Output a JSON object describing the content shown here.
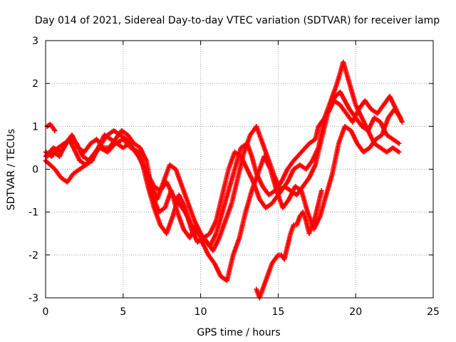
{
  "chart_data": {
    "type": "scatter",
    "title": "Day 014 of 2021, Sidereal Day-to-day VTEC variation (SDTVAR) for receiver lamp",
    "xlabel": "GPS time / hours",
    "ylabel": "SDTVAR / TECUs",
    "xlim": [
      0,
      25
    ],
    "ylim": [
      -3,
      3
    ],
    "xticks": [
      "0",
      "5",
      "10",
      "15",
      "20",
      "25"
    ],
    "yticks": [
      "-3",
      "-2",
      "-1",
      "0",
      "1",
      "2",
      "3"
    ],
    "grid": true,
    "marker": "+",
    "color": "#ff0000",
    "series": [
      {
        "x": [
          0,
          0.5,
          1,
          1.5,
          1.8,
          2.2,
          2.6,
          3,
          3.5,
          4,
          4.5,
          5,
          5.5,
          6,
          6.3,
          6.7,
          7,
          7.4,
          7.8,
          8.2,
          8.6,
          9,
          9.4,
          9.8,
          10.2,
          10.6,
          11,
          11.4,
          11.8,
          12.2,
          12.6,
          13,
          13.3,
          13.6,
          14,
          14.4,
          14.8,
          15.2,
          15.6,
          16,
          16.5,
          17,
          17.4,
          17.6,
          18,
          18.3,
          18.7,
          19,
          19.3,
          19.6,
          20,
          20.4,
          20.8,
          21.2,
          21.6,
          22,
          22.4,
          22.8
        ],
        "y": [
          0.3,
          0.5,
          0.4,
          0.7,
          0.5,
          0.2,
          0.1,
          0.3,
          0.5,
          0.4,
          0.6,
          0.7,
          0.5,
          0.4,
          0.1,
          -0.2,
          -0.4,
          -0.5,
          -0.3,
          -0.6,
          -0.8,
          -1.0,
          -1.3,
          -1.5,
          -1.6,
          -1.8,
          -1.5,
          -1.0,
          -0.5,
          0.0,
          0.5,
          0.6,
          0.3,
          -0.1,
          -0.4,
          -0.6,
          -0.5,
          -0.3,
          0.0,
          0.2,
          0.4,
          0.6,
          0.7,
          1.0,
          1.2,
          1.5,
          1.7,
          1.8,
          1.6,
          1.4,
          1.2,
          1.0,
          0.9,
          1.2,
          1.1,
          0.8,
          0.7,
          0.6
        ]
      },
      {
        "x": [
          0,
          0.4,
          0.8,
          1.2,
          1.6,
          2,
          2.4,
          2.8,
          3.2,
          3.6,
          4,
          4.4,
          4.8,
          5.2,
          5.6,
          6,
          6.4,
          6.8,
          7.2,
          7.6,
          8,
          8.4,
          8.8,
          9.2,
          9.6,
          10,
          10.4,
          10.8,
          11.2,
          11.6,
          12,
          12.4,
          12.8,
          13.2,
          13.6,
          14,
          14.4,
          14.8,
          15.2,
          15.6,
          16,
          16.4,
          16.8,
          17.2,
          17.6,
          18,
          18.4,
          18.8,
          19.2,
          19.6,
          20,
          20.4,
          20.8,
          21.2,
          21.6,
          22,
          22.4,
          22.8
        ],
        "y": [
          0.4,
          0.3,
          0.5,
          0.6,
          0.7,
          0.6,
          0.3,
          0.2,
          0.4,
          0.6,
          0.8,
          0.9,
          0.8,
          0.7,
          0.5,
          0.3,
          0.0,
          -0.3,
          -0.7,
          -0.3,
          0.1,
          0.0,
          -0.4,
          -0.8,
          -1.2,
          -1.5,
          -1.7,
          -1.9,
          -1.6,
          -1.2,
          -0.8,
          -0.2,
          0.4,
          0.8,
          1.0,
          0.6,
          0.2,
          -0.2,
          -0.5,
          -0.3,
          0.0,
          0.1,
          0.0,
          0.2,
          0.5,
          1.2,
          1.6,
          2.0,
          2.5,
          2.0,
          1.5,
          1.2,
          0.9,
          0.6,
          0.5,
          0.4,
          0.5,
          0.4
        ]
      },
      {
        "x": [
          0,
          0.3,
          0.6,
          1,
          1.4,
          1.8,
          2.2,
          2.6,
          3,
          3.4,
          3.8,
          4.2,
          4.6,
          5,
          5.4,
          5.8,
          6.2,
          6.6,
          7,
          7.4,
          7.8,
          8.2,
          8.6,
          9,
          9.4,
          9.8,
          10.2,
          10.6,
          11,
          11.4,
          11.8,
          12.2,
          12.6,
          13,
          13.4,
          13.8,
          14.2,
          14.6,
          15,
          15.4,
          15.8,
          16.2,
          16.6,
          17,
          17.4,
          17.8,
          18.2,
          18.6,
          19,
          19.4,
          19.8,
          20.2,
          20.6,
          21,
          21.4,
          21.8,
          22.2,
          22.6,
          23
        ],
        "y": [
          0.2,
          0.1,
          0.0,
          -0.2,
          -0.3,
          -0.1,
          0.0,
          0.1,
          0.2,
          0.5,
          0.8,
          0.7,
          0.6,
          0.5,
          0.6,
          0.4,
          0.2,
          -0.4,
          -0.9,
          -1.3,
          -1.5,
          -1.1,
          -0.6,
          -0.9,
          -1.4,
          -1.7,
          -1.6,
          -1.5,
          -1.2,
          -0.6,
          0.0,
          0.4,
          0.3,
          0.0,
          -0.3,
          -0.7,
          -0.9,
          -0.8,
          -0.6,
          -0.4,
          -0.5,
          -0.6,
          -0.4,
          -0.2,
          0.1,
          0.7,
          1.3,
          1.6,
          1.5,
          1.3,
          1.1,
          1.4,
          1.6,
          1.4,
          1.3,
          1.5,
          1.7,
          1.4,
          1.1
        ]
      },
      {
        "x": [
          0.1,
          0.5,
          0.9,
          1.3,
          1.7,
          2.1,
          2.5,
          2.9,
          3.3,
          3.7,
          4.1,
          4.5,
          4.9,
          5.3,
          5.7,
          6.1,
          6.5,
          6.9,
          7.3,
          7.7,
          8.1,
          8.5,
          8.9,
          9.3,
          9.7,
          10.1,
          10.5,
          10.9,
          11.3,
          11.7,
          12.1,
          12.5,
          12.9,
          13.3,
          13.7,
          14.1,
          14.5,
          14.9,
          15.3,
          15.7,
          16.1,
          16.5,
          16.9,
          17.3,
          17.7,
          18.1,
          18.5,
          18.9,
          19.3,
          19.7,
          20.1,
          20.5,
          20.9,
          21.3,
          21.7,
          22.1,
          22.5,
          22.9
        ],
        "y": [
          0.3,
          0.4,
          0.3,
          0.6,
          0.8,
          0.5,
          0.4,
          0.6,
          0.7,
          0.5,
          0.5,
          0.7,
          0.9,
          0.8,
          0.6,
          0.5,
          0.2,
          -0.6,
          -1.0,
          -0.9,
          -0.5,
          -1.0,
          -1.4,
          -1.6,
          -1.3,
          -1.7,
          -2.0,
          -2.2,
          -2.5,
          -2.6,
          -2.0,
          -1.6,
          -1.0,
          -0.5,
          -0.1,
          0.3,
          0.0,
          -0.5,
          -0.9,
          -0.7,
          -0.4,
          -0.5,
          -1.0,
          -1.4,
          -1.1,
          -0.6,
          -0.1,
          0.6,
          1.0,
          0.9,
          0.6,
          0.4,
          0.5,
          0.7,
          0.8,
          1.2,
          1.4,
          1.2
        ]
      },
      {
        "x": [
          13.6,
          13.8,
          14,
          14.2,
          14.4,
          14.6,
          14.8,
          15,
          15.2,
          15.4,
          15.6,
          15.8,
          16,
          16.2,
          16.4,
          16.6,
          16.8,
          17,
          17.2,
          17.4,
          17.6,
          17.8
        ],
        "y": [
          -2.8,
          -3.0,
          -2.8,
          -2.6,
          -2.4,
          -2.2,
          -2.1,
          -2.0,
          -2.0,
          -2.1,
          -1.8,
          -1.5,
          -1.3,
          -1.3,
          -1.1,
          -1.0,
          -1.2,
          -1.5,
          -1.3,
          -1.1,
          -0.8,
          -0.5
        ]
      },
      {
        "x": [
          0.1,
          0.3,
          0.5,
          0.6
        ],
        "y": [
          1.0,
          1.05,
          0.95,
          0.9
        ]
      }
    ]
  }
}
